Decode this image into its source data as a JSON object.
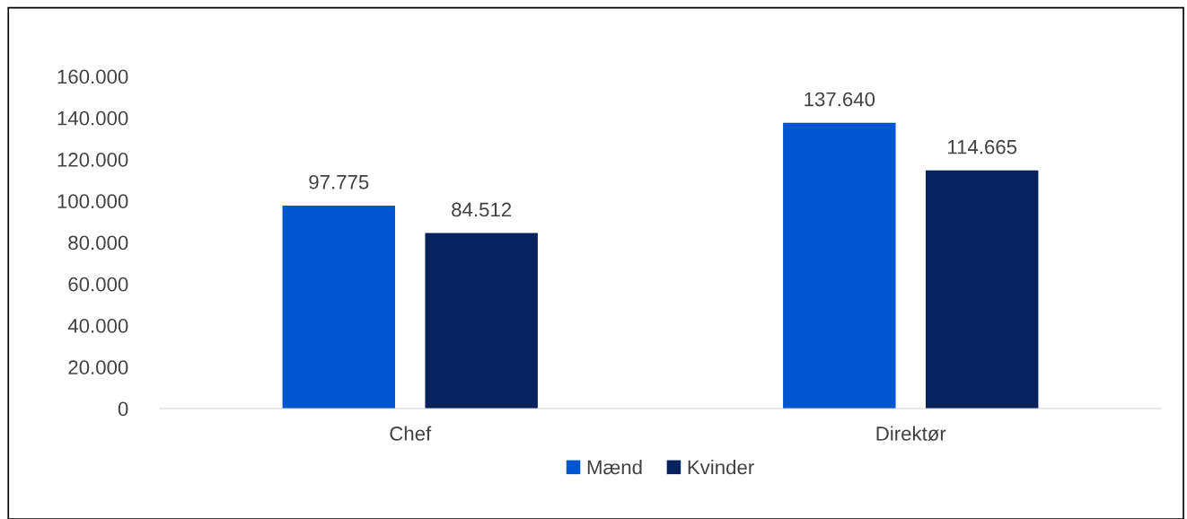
{
  "chart_data": {
    "type": "bar",
    "categories": [
      "Chef",
      "Direktør"
    ],
    "series": [
      {
        "name": "Mænd",
        "color": "#0055d0",
        "values": [
          97775,
          137640
        ]
      },
      {
        "name": "Kvinder",
        "color": "#08225e",
        "values": [
          84512,
          114665
        ]
      }
    ],
    "ylim": [
      0,
      160000
    ],
    "yticks": [
      {
        "value": 0,
        "label": "0"
      },
      {
        "value": 20000,
        "label": "20.000"
      },
      {
        "value": 40000,
        "label": "40.000"
      },
      {
        "value": 60000,
        "label": "60.000"
      },
      {
        "value": 80000,
        "label": "80.000"
      },
      {
        "value": 100000,
        "label": "100.000"
      },
      {
        "value": 120000,
        "label": "120.000"
      },
      {
        "value": 140000,
        "label": "140.000"
      },
      {
        "value": 160000,
        "label": "160.000"
      }
    ],
    "value_labels": [
      [
        "97.775",
        "137.640"
      ],
      [
        "84.512",
        "114.665"
      ]
    ],
    "grid": false,
    "legend": "bottom"
  }
}
